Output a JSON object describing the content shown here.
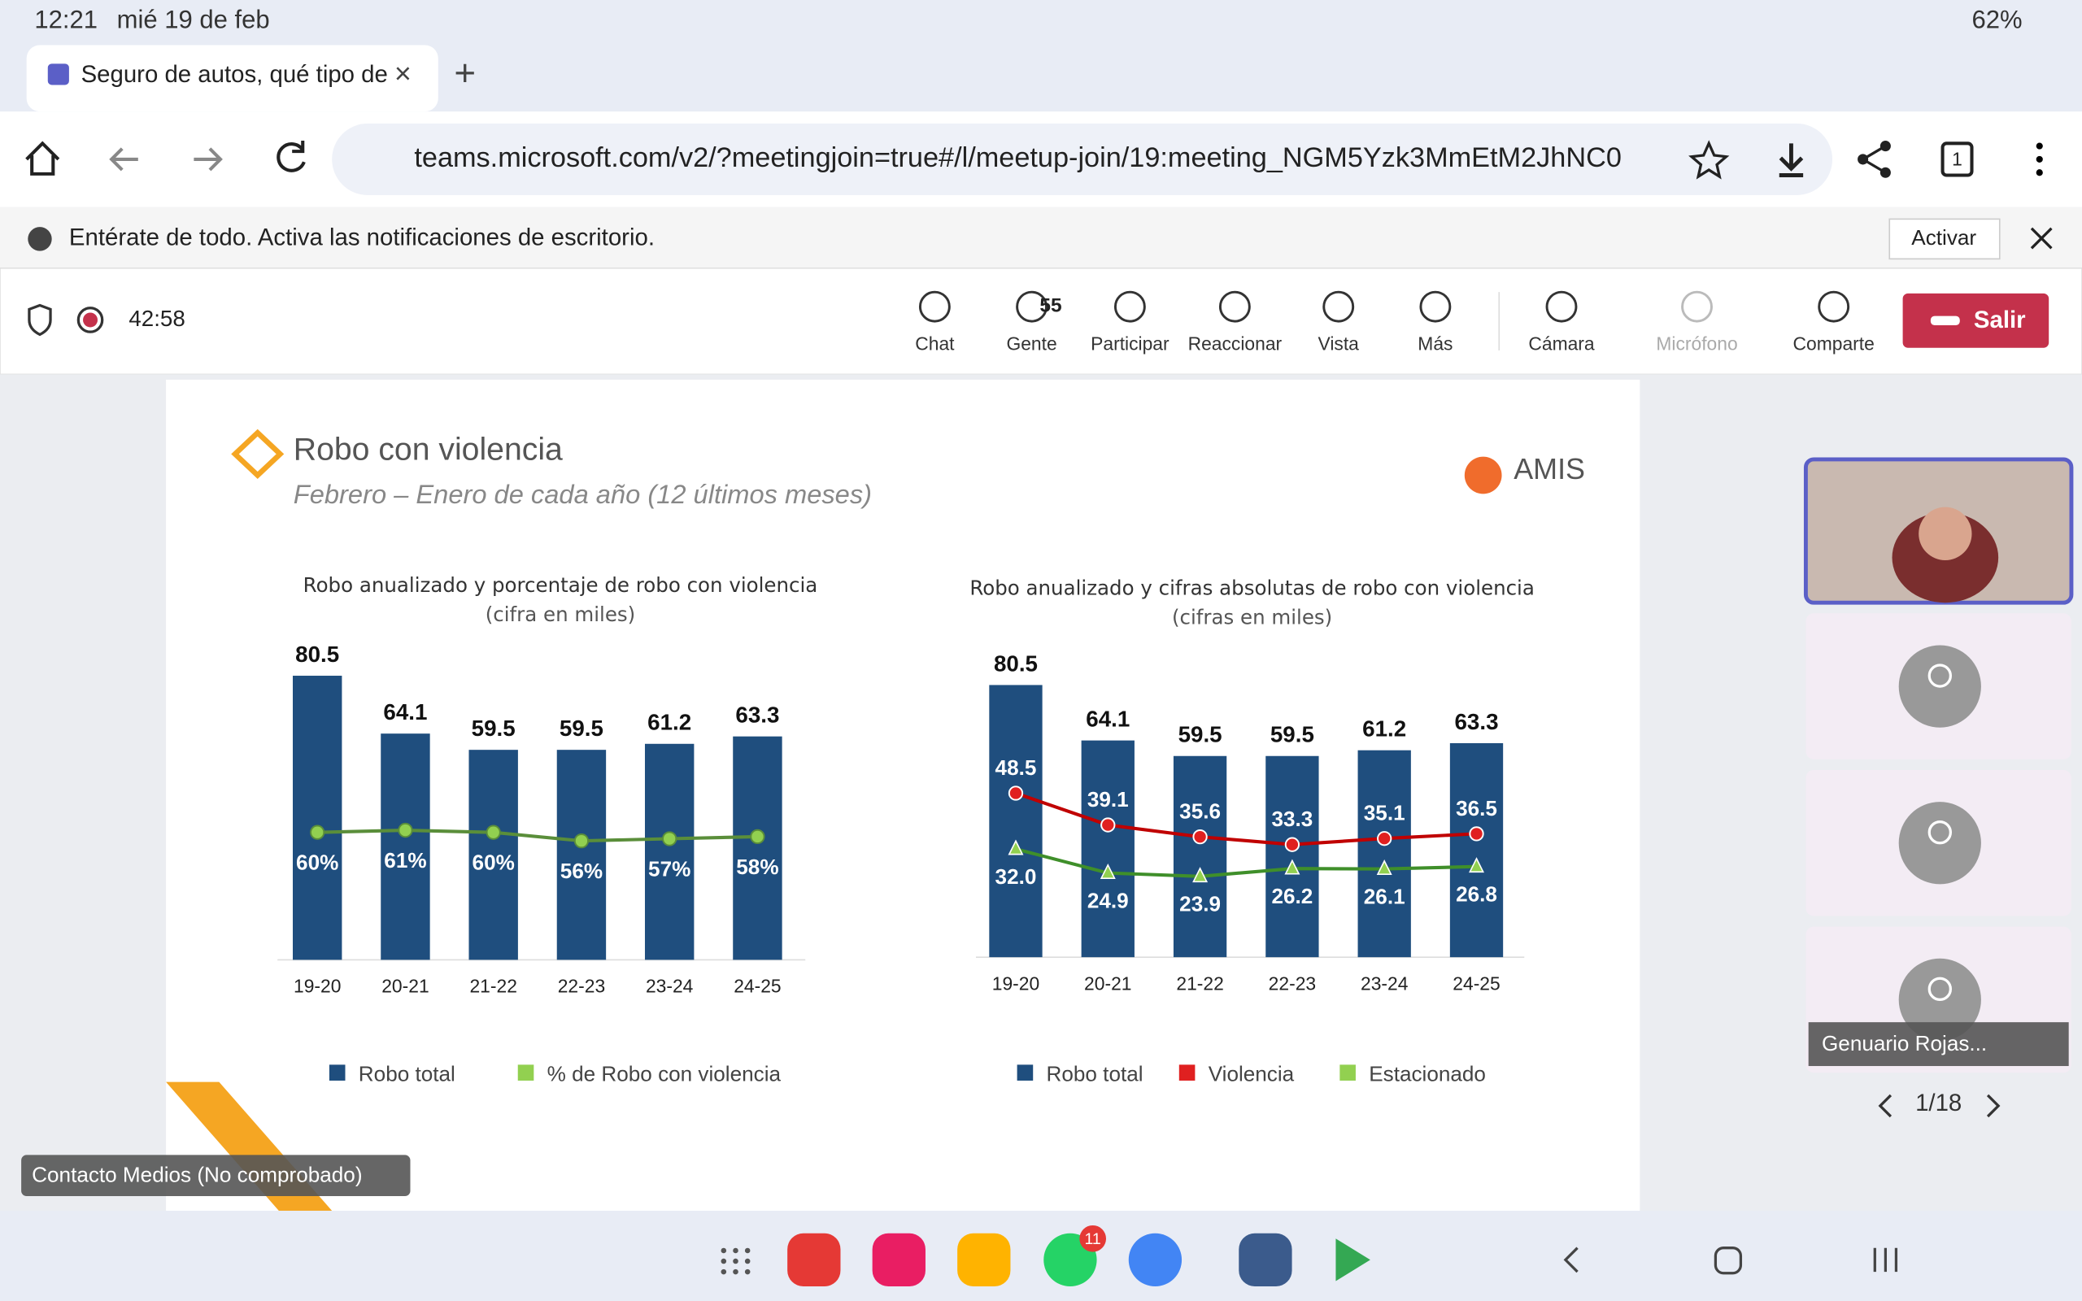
{
  "status": {
    "time": "12:21",
    "date": "mié 19 de feb",
    "battery": "62%"
  },
  "browser": {
    "tab_title": "Seguro de autos, qué tipo de",
    "url": "teams.microsoft.com/v2/?meetingjoin=true#/l/meetup-join/19:meeting_NGM5Yzk3MmEtM2JhNC0",
    "tab_count": "1"
  },
  "notification": {
    "text": "Entérate de todo. Activa las notificaciones de escritorio.",
    "button": "Activar"
  },
  "meeting": {
    "timer": "42:58",
    "people_count": "55",
    "toolbar": [
      "Chat",
      "Gente",
      "Participar",
      "Reaccionar",
      "Vista",
      "Más",
      "Cámara",
      "Micrófono",
      "Comparte"
    ],
    "leave": "Salir"
  },
  "slide": {
    "title": "Robo con  violencia",
    "subtitle": "Febrero – Enero de cada año (12 últimos meses)",
    "logo": "AMIS"
  },
  "chart_data": [
    {
      "type": "bar",
      "title": "Robo anualizado y porcentaje de robo con violencia",
      "subtitle": "(cifra en miles)",
      "categories": [
        "19-20",
        "20-21",
        "21-22",
        "22-23",
        "23-24",
        "24-25"
      ],
      "series": [
        {
          "name": "Robo total",
          "color": "#1f4e7e",
          "values": [
            80.5,
            64.1,
            59.5,
            59.5,
            61.2,
            63.3
          ]
        },
        {
          "name": "% de Robo con violencia",
          "color": "#5a8e3a",
          "marker_color": "#92d050",
          "type": "line",
          "values": [
            60,
            61,
            60,
            56,
            57,
            58
          ],
          "value_labels": [
            "60%",
            "61%",
            "60%",
            "56%",
            "57%",
            "58%"
          ]
        }
      ]
    },
    {
      "type": "bar",
      "title": "Robo anualizado y cifras absolutas de robo con violencia",
      "subtitle": "(cifras en miles)",
      "categories": [
        "19-20",
        "20-21",
        "21-22",
        "22-23",
        "23-24",
        "24-25"
      ],
      "series": [
        {
          "name": "Robo total",
          "color": "#1f4e7e",
          "values": [
            80.5,
            64.1,
            59.5,
            59.5,
            61.2,
            63.3
          ]
        },
        {
          "name": "Violencia",
          "color": "#c00000",
          "marker_color": "#e02020",
          "type": "line",
          "values": [
            48.5,
            39.1,
            35.6,
            33.3,
            35.1,
            36.5
          ]
        },
        {
          "name": "Estacionado",
          "color": "#3f8f2a",
          "marker_color": "#92d050",
          "type": "line",
          "values": [
            32.0,
            24.9,
            23.9,
            26.2,
            26.1,
            26.8
          ],
          "value_labels": [
            "32.0",
            "24.9",
            "23.9",
            "26.2",
            "26.1",
            "26.8"
          ]
        }
      ]
    }
  ],
  "participants": {
    "name": "Genuario Rojas...",
    "page": "1/18"
  },
  "presenter": "Contacto Medios (No comprobado)",
  "dock": {
    "badge": "11"
  }
}
